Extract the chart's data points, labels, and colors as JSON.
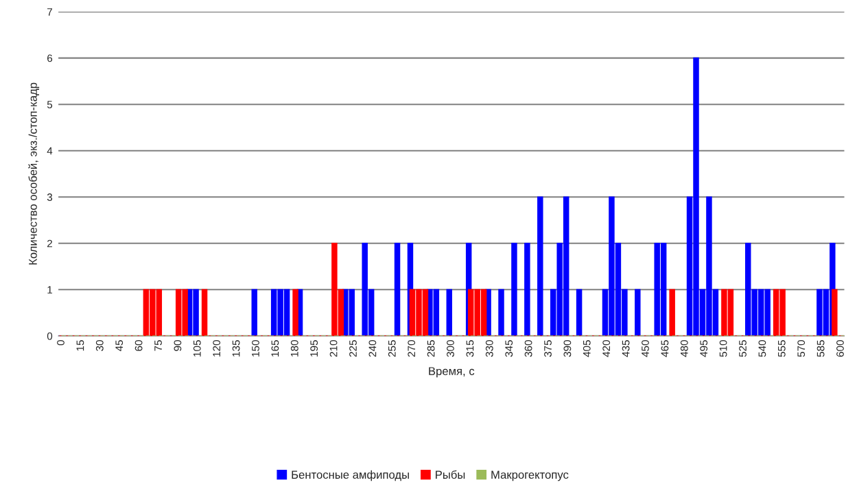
{
  "chart_data": {
    "type": "bar",
    "xlabel": "Время, с",
    "ylabel": "Количество особей, экз./стоп-кадр",
    "categories": [
      "0",
      null,
      null,
      "15",
      null,
      null,
      "30",
      null,
      null,
      "45",
      null,
      null,
      "60",
      null,
      null,
      "75",
      null,
      null,
      "90",
      null,
      null,
      "105",
      null,
      null,
      "120",
      null,
      null,
      "135",
      null,
      null,
      "150",
      null,
      null,
      "165",
      null,
      null,
      "180",
      null,
      null,
      "195",
      null,
      null,
      "210",
      null,
      null,
      "225",
      null,
      null,
      "240",
      null,
      null,
      "255",
      null,
      null,
      "270",
      null,
      null,
      "285",
      null,
      null,
      "300",
      null,
      null,
      "315",
      null,
      null,
      "330",
      null,
      null,
      "345",
      null,
      null,
      "360",
      null,
      null,
      "375",
      null,
      null,
      "390",
      null,
      null,
      "405",
      null,
      null,
      "420",
      null,
      null,
      "435",
      null,
      null,
      "450",
      null,
      null,
      "465",
      null,
      null,
      "480",
      null,
      null,
      "495",
      null,
      null,
      "510",
      null,
      null,
      "525",
      null,
      null,
      "540",
      null,
      null,
      "555",
      null,
      null,
      "570",
      null,
      null,
      "585",
      null,
      null,
      "600"
    ],
    "series": [
      {
        "name": "Бентосные амфиподы",
        "color": "#0000ff",
        "values": [
          0,
          0,
          0,
          0,
          0,
          0,
          0,
          0,
          0,
          0,
          0,
          0,
          0,
          0,
          0,
          0,
          0,
          0,
          0,
          0,
          1,
          1,
          null,
          0,
          0,
          0,
          0,
          0,
          0,
          0,
          1,
          0,
          0,
          1,
          1,
          1,
          0,
          1,
          0,
          0,
          0,
          0,
          0,
          null,
          1,
          1,
          0,
          2,
          1,
          0,
          0,
          0,
          2,
          0,
          2,
          0,
          0,
          1,
          1,
          0,
          1,
          0,
          0,
          2,
          0,
          0,
          1,
          0,
          1,
          0,
          2,
          0,
          2,
          0,
          3,
          0,
          1,
          2,
          3,
          0,
          1,
          0,
          0,
          0,
          1,
          3,
          2,
          1,
          0,
          1,
          0,
          0,
          2,
          2,
          0,
          0,
          0,
          3,
          6,
          1,
          3,
          1,
          null,
          0,
          0,
          0,
          2,
          1,
          1,
          1,
          null,
          0,
          0,
          0,
          0,
          0,
          0,
          1,
          1,
          2,
          0
        ]
      },
      {
        "name": "Рыбы",
        "color": "#ff0000",
        "values": [
          0,
          0,
          0,
          0,
          0,
          0,
          0,
          0,
          0,
          0,
          0,
          0,
          0,
          1,
          1,
          1,
          0,
          0,
          1,
          1,
          0,
          0,
          1,
          0,
          0,
          0,
          0,
          0,
          0,
          0,
          0,
          0,
          0,
          0,
          0,
          0,
          1,
          0,
          0,
          0,
          0,
          0,
          2,
          1,
          0,
          0,
          0,
          0,
          0,
          0,
          0,
          0,
          0,
          0,
          1,
          1,
          1,
          0,
          0,
          0,
          0,
          0,
          0,
          1,
          1,
          1,
          0,
          0,
          0,
          0,
          0,
          0,
          0,
          0,
          0,
          0,
          0,
          0,
          0,
          0,
          0,
          0,
          0,
          0,
          0,
          0,
          0,
          0,
          0,
          0,
          0,
          0,
          0,
          0,
          1,
          0,
          0,
          0,
          0,
          0,
          0,
          0,
          1,
          1,
          0,
          0,
          0,
          0,
          0,
          0,
          1,
          1,
          0,
          0,
          0,
          0,
          0,
          0,
          0,
          1,
          0
        ]
      },
      {
        "name": "Макрогектопус",
        "color": "#9bbb59",
        "values": [
          0,
          0,
          0,
          0,
          0,
          0,
          0,
          0,
          0,
          0,
          0,
          0,
          0,
          0,
          0,
          0,
          0,
          0,
          0,
          0,
          0,
          0,
          0,
          0,
          0,
          0,
          0,
          0,
          0,
          0,
          0,
          0,
          0,
          0,
          0,
          0,
          0,
          0,
          0,
          0,
          0,
          0,
          0,
          0,
          0,
          0,
          0,
          0,
          0,
          0,
          0,
          0,
          0,
          0,
          0,
          0,
          0,
          0,
          0,
          0,
          0,
          0,
          0,
          0,
          0,
          0,
          0,
          0,
          0,
          0,
          0,
          0,
          0,
          0,
          0,
          0,
          0,
          0,
          0,
          0,
          0,
          0,
          0,
          0,
          0,
          0,
          0,
          0,
          0,
          0,
          0,
          0,
          0,
          0,
          0,
          0,
          0,
          0,
          0,
          0,
          0,
          0,
          0,
          0,
          0,
          0,
          0,
          0,
          0,
          0,
          0,
          0,
          0,
          0,
          0,
          0,
          0,
          0,
          0,
          0,
          0
        ]
      }
    ],
    "ylim": [
      0,
      7
    ],
    "yticks": [
      0,
      1,
      2,
      3,
      4,
      5,
      6,
      7
    ],
    "grid": "y",
    "legend": "bottom"
  }
}
